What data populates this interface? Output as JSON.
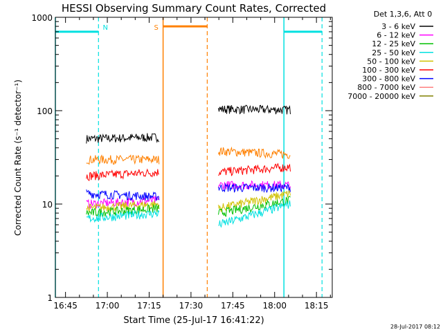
{
  "chart_data": {
    "type": "line",
    "title": "HESSI Observing Summary Count Rates, Corrected",
    "xlabel": "Start Time (25-Jul-17 16:41:22)",
    "ylabel": "Corrected Count Rate (s⁻¹ detector⁻¹)",
    "y_scale": "log",
    "ylim": [
      1,
      1000
    ],
    "xlim": [
      "16:41:22",
      "18:20:40"
    ],
    "x_tick_labels": [
      "16:45",
      "17:00",
      "17:15",
      "17:30",
      "17:45",
      "18:00",
      "18:15"
    ],
    "y_tick_labels": [
      "1",
      "10",
      "100",
      "1000"
    ],
    "legend": {
      "placement": "outside-right",
      "header": "Det 1,3,6, Att 0",
      "entries": [
        {
          "label": "3 - 6 keV",
          "color": "#000000"
        },
        {
          "label": "6 - 12 keV",
          "color": "#ff00ff"
        },
        {
          "label": "12 - 25 keV",
          "color": "#00c000"
        },
        {
          "label": "25 - 50 keV",
          "color": "#00e0e0"
        },
        {
          "label": "50 - 100 keV",
          "color": "#d0c000"
        },
        {
          "label": "100 - 300 keV",
          "color": "#ff0000"
        },
        {
          "label": "300 - 800 keV",
          "color": "#0000ff"
        },
        {
          "label": "800 - 7000 keV",
          "color": "#ff8080"
        },
        {
          "label": "7000 - 20000 keV",
          "color": "#808000"
        }
      ]
    },
    "extra_series_color": "#ff8000",
    "segments": [
      {
        "start": "16:52:30",
        "end": "17:18:40"
      },
      {
        "start": "17:39:50",
        "end": "18:05:40"
      }
    ],
    "series": [
      {
        "name": "3 - 6 keV",
        "color": "#000000",
        "values": [
          [
            50,
            52
          ],
          [
            104,
            102
          ]
        ]
      },
      {
        "name": "",
        "color": "#ff8000",
        "values": [
          [
            30,
            30
          ],
          [
            37,
            34
          ]
        ]
      },
      {
        "name": "100 - 300 keV",
        "color": "#ff0000",
        "values": [
          [
            20,
            22
          ],
          [
            22,
            25
          ]
        ]
      },
      {
        "name": "6 - 12 keV",
        "color": "#ff00ff",
        "values": [
          [
            10,
            11
          ],
          [
            16,
            16
          ]
        ]
      },
      {
        "name": "300 - 800 keV",
        "color": "#0000ff",
        "values": [
          [
            13,
            12
          ],
          [
            15,
            15
          ]
        ]
      },
      {
        "name": "50 - 100 keV",
        "color": "#d0c000",
        "values": [
          [
            9,
            10
          ],
          [
            9,
            13
          ]
        ]
      },
      {
        "name": "12 - 25 keV",
        "color": "#00c000",
        "values": [
          [
            8,
            9
          ],
          [
            8,
            11
          ]
        ]
      },
      {
        "name": "25 - 50 keV",
        "color": "#00e0e0",
        "values": [
          [
            7,
            8
          ],
          [
            6,
            10
          ]
        ]
      }
    ],
    "annotations": [
      {
        "label": "N",
        "color": "#00e0e0",
        "start": "16:41:22",
        "end": "16:56:50",
        "level": 700
      },
      {
        "label": "S",
        "color": "#ff8000",
        "start": "17:20:00",
        "end": "17:35:50",
        "level": 800
      },
      {
        "label": "",
        "color": "#00e0e0",
        "start": "18:03:20",
        "end": "18:17:00",
        "level": 700
      }
    ]
  },
  "footer": {
    "timestamp": "28-Jul-2017 08:12"
  }
}
